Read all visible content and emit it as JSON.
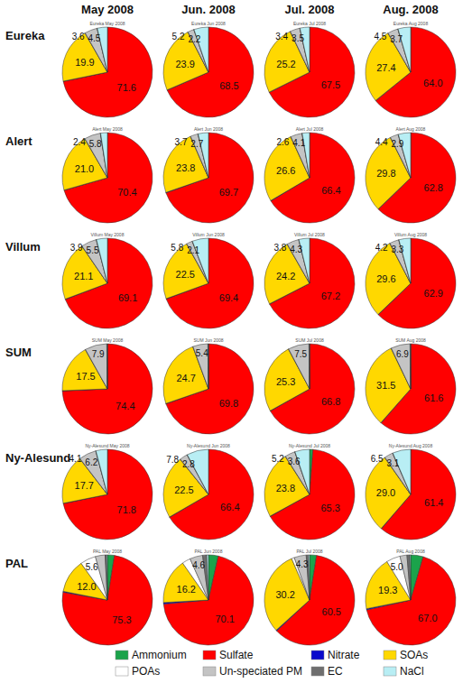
{
  "columns": [
    "May 2008",
    "Jun. 2008",
    "Jul. 2008",
    "Aug. 2008"
  ],
  "rows": [
    "Eureka",
    "Alert",
    "Villum",
    "SUM",
    "Ny-Alesund",
    "PAL"
  ],
  "chart_data": [
    {
      "type": "pie",
      "title": "Eureka May 2008",
      "categories": [
        "Ammonium",
        "Sulfate",
        "Nitrate",
        "SOAs",
        "POAs",
        "Un-speciated PM",
        "EC",
        "NaCl"
      ],
      "colors": [
        "#1ba34b",
        "#ff0000",
        "#0a0acc",
        "#ffd800",
        "#ffffff",
        "#c4c4c4",
        "#6e6e6e",
        "#b8eef4"
      ],
      "values": [
        0.1,
        71.6,
        0.1,
        19.9,
        0.1,
        4.5,
        0.1,
        3.6
      ],
      "value_labels": [
        null,
        "71.6",
        null,
        "19.9",
        null,
        "4.5",
        null,
        "3.6"
      ],
      "data_labels": true,
      "legend": "bottom"
    },
    {
      "type": "pie",
      "title": "Eureka Jun 2008",
      "values": [
        0.1,
        68.5,
        0.1,
        23.9,
        0.1,
        2.2,
        0.1,
        5.2
      ],
      "value_labels": [
        null,
        "68.5",
        null,
        "23.9",
        null,
        "2.2",
        null,
        "5.2"
      ],
      "data_labels": true
    },
    {
      "type": "pie",
      "title": "Eureka Jul 2008",
      "values": [
        0.1,
        67.5,
        0.1,
        25.2,
        0.1,
        3.5,
        0.1,
        3.4
      ],
      "value_labels": [
        null,
        "67.5",
        null,
        "25.2",
        null,
        "3.5",
        null,
        "3.4"
      ],
      "data_labels": true
    },
    {
      "type": "pie",
      "title": "Eureka Aug 2008",
      "values": [
        0.1,
        64.0,
        0.1,
        27.4,
        0.1,
        3.7,
        0.1,
        4.5
      ],
      "value_labels": [
        null,
        "64.0",
        null,
        "27.4",
        null,
        "3.7",
        null,
        "4.5"
      ],
      "data_labels": true
    },
    {
      "type": "pie",
      "title": "Alert May 2008",
      "values": [
        0.1,
        70.4,
        0.1,
        21.0,
        0.1,
        5.8,
        0.1,
        2.4
      ],
      "value_labels": [
        null,
        "70.4",
        null,
        "21.0",
        null,
        "5.8",
        null,
        "2.4"
      ],
      "data_labels": true
    },
    {
      "type": "pie",
      "title": "Alert Jun 2008",
      "values": [
        0.1,
        69.7,
        0.1,
        23.8,
        0.1,
        2.7,
        0.1,
        3.7
      ],
      "value_labels": [
        null,
        "69.7",
        null,
        "23.8",
        null,
        "2.7",
        null,
        "3.7"
      ],
      "data_labels": true
    },
    {
      "type": "pie",
      "title": "Alert Jul 2008",
      "values": [
        0.1,
        66.4,
        0.1,
        26.6,
        0.1,
        4.1,
        0.1,
        2.6
      ],
      "value_labels": [
        null,
        "66.4",
        null,
        "26.6",
        null,
        "4.1",
        null,
        "2.6"
      ],
      "data_labels": true
    },
    {
      "type": "pie",
      "title": "Alert Aug 2008",
      "values": [
        0.1,
        62.8,
        0.1,
        29.8,
        0.1,
        2.9,
        0.1,
        4.4
      ],
      "value_labels": [
        null,
        "62.8",
        null,
        "29.8",
        null,
        "2.9",
        null,
        "4.4"
      ],
      "data_labels": true
    },
    {
      "type": "pie",
      "title": "Villum May 2008",
      "values": [
        0.1,
        69.1,
        0.1,
        21.1,
        0.1,
        5.5,
        0.1,
        3.9
      ],
      "value_labels": [
        null,
        "69.1",
        null,
        "21.1",
        null,
        "5.5",
        null,
        "3.9"
      ],
      "data_labels": true
    },
    {
      "type": "pie",
      "title": "Villum Jun 2008",
      "values": [
        0.1,
        69.4,
        0.1,
        22.5,
        0.1,
        2.1,
        0.1,
        5.8
      ],
      "value_labels": [
        null,
        "69.4",
        null,
        "22.5",
        null,
        "2.1",
        null,
        "5.8"
      ],
      "data_labels": true
    },
    {
      "type": "pie",
      "title": "Villum Jul 2008",
      "values": [
        0.1,
        67.2,
        0.1,
        24.2,
        0.1,
        4.3,
        0.1,
        3.8
      ],
      "value_labels": [
        null,
        "67.2",
        null,
        "24.2",
        null,
        "4.3",
        null,
        "3.8"
      ],
      "data_labels": true
    },
    {
      "type": "pie",
      "title": "Villum Aug 2008",
      "values": [
        0.1,
        62.9,
        0.1,
        29.6,
        0.1,
        3.3,
        0.1,
        4.2
      ],
      "value_labels": [
        null,
        "62.9",
        null,
        "29.6",
        null,
        "3.3",
        null,
        "4.2"
      ],
      "data_labels": true
    },
    {
      "type": "pie",
      "title": "SUM May 2008",
      "values": [
        0.1,
        74.4,
        0.1,
        17.5,
        0.1,
        7.9,
        0.1,
        0.1
      ],
      "value_labels": [
        null,
        "74.4",
        null,
        "17.5",
        null,
        "7.9",
        null,
        null
      ],
      "data_labels": true
    },
    {
      "type": "pie",
      "title": "SUM Jun 2008",
      "values": [
        0.1,
        69.8,
        0.1,
        24.7,
        0.1,
        5.4,
        0.1,
        0.1
      ],
      "value_labels": [
        null,
        "69.8",
        null,
        "24.7",
        null,
        "5.4",
        null,
        null
      ],
      "data_labels": true
    },
    {
      "type": "pie",
      "title": "SUM Jul 2008",
      "values": [
        0.1,
        66.8,
        0.1,
        25.3,
        0.1,
        7.5,
        0.1,
        0.1
      ],
      "value_labels": [
        null,
        "66.8",
        null,
        "25.3",
        null,
        "7.5",
        null,
        null
      ],
      "data_labels": true
    },
    {
      "type": "pie",
      "title": "SUM Aug 2008",
      "values": [
        0.1,
        61.6,
        0.1,
        31.5,
        0.1,
        6.9,
        0.1,
        0.1
      ],
      "value_labels": [
        null,
        "61.6",
        null,
        "31.5",
        null,
        "6.9",
        null,
        null
      ],
      "data_labels": true
    },
    {
      "type": "pie",
      "title": "Ny-Alesund May 2008",
      "values": [
        0.1,
        71.8,
        0.1,
        17.7,
        0.1,
        6.2,
        0.1,
        4.1
      ],
      "value_labels": [
        null,
        "71.8",
        null,
        "17.7",
        null,
        "6.2",
        null,
        "4.1"
      ],
      "data_labels": true
    },
    {
      "type": "pie",
      "title": "Ny-Alesund Jun 2008",
      "values": [
        0.1,
        66.4,
        0.1,
        22.5,
        0.1,
        2.8,
        0.1,
        7.8
      ],
      "value_labels": [
        null,
        "66.4",
        null,
        "22.5",
        null,
        "2.8",
        null,
        "7.8"
      ],
      "data_labels": true
    },
    {
      "type": "pie",
      "title": "Ny-Alesund Jul 2008",
      "values": [
        1.2,
        65.3,
        0.1,
        23.8,
        0.1,
        3.6,
        0.1,
        5.2
      ],
      "value_labels": [
        null,
        "65.3",
        null,
        "23.8",
        null,
        "3.6",
        null,
        "5.2"
      ],
      "data_labels": true
    },
    {
      "type": "pie",
      "title": "Ny-Alesund Aug 2008",
      "values": [
        0.1,
        61.4,
        0.1,
        29.0,
        0.1,
        3.1,
        0.1,
        6.5
      ],
      "value_labels": [
        null,
        "61.4",
        null,
        "29.0",
        null,
        "3.1",
        null,
        "6.5"
      ],
      "data_labels": true
    },
    {
      "type": "pie",
      "title": "PAL May 2008",
      "values": [
        2.5,
        75.3,
        0.3,
        12.0,
        5.6,
        3.5,
        0.5,
        0.3
      ],
      "value_labels": [
        null,
        "75.3",
        null,
        "12.0",
        "5.6",
        null,
        null,
        null
      ],
      "data_labels": true
    },
    {
      "type": "pie",
      "title": "PAL Jun 2008",
      "values": [
        3.5,
        70.1,
        0.5,
        16.2,
        3.0,
        4.6,
        1.5,
        0.6
      ],
      "value_labels": [
        null,
        "70.1",
        null,
        "16.2",
        null,
        "4.6",
        null,
        null
      ],
      "data_labels": true
    },
    {
      "type": "pie",
      "title": "PAL Jul 2008",
      "values": [
        2.5,
        60.5,
        0.3,
        30.2,
        1.0,
        4.3,
        0.8,
        0.4
      ],
      "value_labels": [
        null,
        "60.5",
        null,
        "30.2",
        null,
        "4.3",
        null,
        null
      ],
      "data_labels": true
    },
    {
      "type": "pie",
      "title": "PAL Aug 2008",
      "values": [
        4.5,
        67.0,
        0.4,
        19.3,
        5.0,
        2.5,
        1.0,
        0.3
      ],
      "value_labels": [
        null,
        "67.0",
        null,
        "19.3",
        "5.0",
        null,
        null,
        null
      ],
      "data_labels": true
    }
  ]
}
